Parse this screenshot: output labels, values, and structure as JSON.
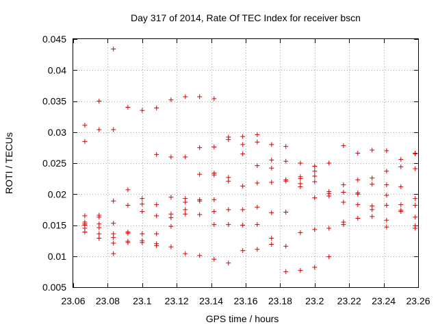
{
  "chart_data": {
    "type": "scatter",
    "title": "Day 317 of 2014, Rate Of TEC Index for receiver bscn",
    "xlabel": "GPS time / hours",
    "ylabel": "ROTI / TECUs",
    "xlim": [
      23.06,
      23.26
    ],
    "ylim": [
      0.005,
      0.045
    ],
    "xticks": [
      23.06,
      23.08,
      23.1,
      23.12,
      23.14,
      23.16,
      23.18,
      23.2,
      23.22,
      23.24,
      23.26
    ],
    "xtick_labels": [
      "23.06",
      "23.08",
      "23.1",
      "23.12",
      "23.14",
      "23.16",
      "23.18",
      "23.2",
      "23.22",
      "23.24",
      "23.26"
    ],
    "yticks": [
      0.005,
      0.01,
      0.015,
      0.02,
      0.025,
      0.03,
      0.035,
      0.04,
      0.045
    ],
    "ytick_labels": [
      "0.005",
      "0.01",
      "0.015",
      "0.02",
      "0.025",
      "0.03",
      "0.035",
      "0.04",
      "0.045"
    ],
    "grid": true,
    "marker": "+",
    "color": "#d40000",
    "series": [
      {
        "name": "ROTI",
        "points": [
          [
            23.0667,
            0.0311
          ],
          [
            23.0667,
            0.0285
          ],
          [
            23.0667,
            0.0165
          ],
          [
            23.0667,
            0.0155
          ],
          [
            23.0667,
            0.0152
          ],
          [
            23.0667,
            0.015
          ],
          [
            23.0667,
            0.0145
          ],
          [
            23.0667,
            0.0139
          ],
          [
            23.075,
            0.035
          ],
          [
            23.075,
            0.0304
          ],
          [
            23.075,
            0.0166
          ],
          [
            23.075,
            0.0163
          ],
          [
            23.075,
            0.0152
          ],
          [
            23.075,
            0.0146
          ],
          [
            23.075,
            0.0136
          ],
          [
            23.075,
            0.0129
          ],
          [
            23.0833,
            0.0434
          ],
          [
            23.0833,
            0.0304
          ],
          [
            23.0833,
            0.0189
          ],
          [
            23.0833,
            0.0153
          ],
          [
            23.0833,
            0.0136
          ],
          [
            23.0833,
            0.013
          ],
          [
            23.0833,
            0.0121
          ],
          [
            23.0833,
            0.0104
          ],
          [
            23.0917,
            0.034
          ],
          [
            23.0917,
            0.0207
          ],
          [
            23.0917,
            0.0182
          ],
          [
            23.0917,
            0.0139
          ],
          [
            23.0917,
            0.0137
          ],
          [
            23.0917,
            0.0124
          ],
          [
            23.0917,
            0.0122
          ],
          [
            23.1,
            0.0335
          ],
          [
            23.1,
            0.0193
          ],
          [
            23.1,
            0.0184
          ],
          [
            23.1,
            0.0172
          ],
          [
            23.1,
            0.0136
          ],
          [
            23.1,
            0.0125
          ],
          [
            23.1,
            0.0122
          ],
          [
            23.1083,
            0.0339
          ],
          [
            23.1083,
            0.0264
          ],
          [
            23.1083,
            0.0183
          ],
          [
            23.1083,
            0.0165
          ],
          [
            23.1083,
            0.0136
          ],
          [
            23.1083,
            0.012
          ],
          [
            23.1083,
            0.0117
          ],
          [
            23.1167,
            0.0352
          ],
          [
            23.1167,
            0.026
          ],
          [
            23.1167,
            0.0195
          ],
          [
            23.1167,
            0.0168
          ],
          [
            23.1167,
            0.0162
          ],
          [
            23.1167,
            0.0148
          ],
          [
            23.1167,
            0.0115
          ],
          [
            23.125,
            0.0357
          ],
          [
            23.125,
            0.026
          ],
          [
            23.125,
            0.0193
          ],
          [
            23.125,
            0.0187
          ],
          [
            23.125,
            0.0175
          ],
          [
            23.125,
            0.0168
          ],
          [
            23.125,
            0.0104
          ],
          [
            23.1333,
            0.0357
          ],
          [
            23.1333,
            0.0275
          ],
          [
            23.1333,
            0.0232
          ],
          [
            23.1333,
            0.0191
          ],
          [
            23.1333,
            0.0189
          ],
          [
            23.1333,
            0.0167
          ],
          [
            23.1333,
            0.0101
          ],
          [
            23.1417,
            0.0354
          ],
          [
            23.1417,
            0.0276
          ],
          [
            23.1417,
            0.0234
          ],
          [
            23.1417,
            0.0231
          ],
          [
            23.1417,
            0.0191
          ],
          [
            23.1417,
            0.0172
          ],
          [
            23.1417,
            0.0151
          ],
          [
            23.1417,
            0.0095
          ],
          [
            23.15,
            0.0292
          ],
          [
            23.15,
            0.0288
          ],
          [
            23.15,
            0.0227
          ],
          [
            23.15,
            0.0221
          ],
          [
            23.15,
            0.0175
          ],
          [
            23.15,
            0.0151
          ],
          [
            23.15,
            0.0089
          ],
          [
            23.1583,
            0.0293
          ],
          [
            23.1583,
            0.028
          ],
          [
            23.1583,
            0.0265
          ],
          [
            23.1583,
            0.0213
          ],
          [
            23.1583,
            0.0175
          ],
          [
            23.1583,
            0.015
          ],
          [
            23.1583,
            0.0109
          ],
          [
            23.1667,
            0.0296
          ],
          [
            23.1667,
            0.0284
          ],
          [
            23.1667,
            0.0246
          ],
          [
            23.1667,
            0.0218
          ],
          [
            23.1667,
            0.0179
          ],
          [
            23.1667,
            0.0151
          ],
          [
            23.1667,
            0.0111
          ],
          [
            23.175,
            0.028
          ],
          [
            23.175,
            0.0255
          ],
          [
            23.175,
            0.0242
          ],
          [
            23.175,
            0.0219
          ],
          [
            23.175,
            0.017
          ],
          [
            23.175,
            0.0129
          ],
          [
            23.175,
            0.0119
          ],
          [
            23.1833,
            0.0277
          ],
          [
            23.1833,
            0.0253
          ],
          [
            23.1833,
            0.0223
          ],
          [
            23.1833,
            0.0221
          ],
          [
            23.1833,
            0.0171
          ],
          [
            23.1833,
            0.0116
          ],
          [
            23.1833,
            0.0075
          ],
          [
            23.1917,
            0.025
          ],
          [
            23.1917,
            0.0228
          ],
          [
            23.1917,
            0.0225
          ],
          [
            23.1917,
            0.0217
          ],
          [
            23.1917,
            0.0212
          ],
          [
            23.1917,
            0.0138
          ],
          [
            23.1917,
            0.0077
          ],
          [
            23.2,
            0.0245
          ],
          [
            23.2,
            0.0237
          ],
          [
            23.2,
            0.0229
          ],
          [
            23.2,
            0.022
          ],
          [
            23.2,
            0.0194
          ],
          [
            23.2,
            0.0143
          ],
          [
            23.2,
            0.0082
          ],
          [
            23.2083,
            0.025
          ],
          [
            23.2083,
            0.0204
          ],
          [
            23.2083,
            0.0201
          ],
          [
            23.2083,
            0.0197
          ],
          [
            23.2083,
            0.0145
          ],
          [
            23.2083,
            0.0099
          ],
          [
            23.2167,
            0.0278
          ],
          [
            23.2167,
            0.0215
          ],
          [
            23.2167,
            0.0203
          ],
          [
            23.2167,
            0.0187
          ],
          [
            23.2167,
            0.0155
          ],
          [
            23.2167,
            0.0151
          ],
          [
            23.225,
            0.0266
          ],
          [
            23.225,
            0.0223
          ],
          [
            23.225,
            0.0202
          ],
          [
            23.225,
            0.02
          ],
          [
            23.225,
            0.0183
          ],
          [
            23.225,
            0.0161
          ],
          [
            23.2333,
            0.0271
          ],
          [
            23.2333,
            0.0226
          ],
          [
            23.2333,
            0.0216
          ],
          [
            23.2333,
            0.0181
          ],
          [
            23.2333,
            0.0175
          ],
          [
            23.2333,
            0.0164
          ],
          [
            23.2417,
            0.027
          ],
          [
            23.2417,
            0.0237
          ],
          [
            23.2417,
            0.0215
          ],
          [
            23.2417,
            0.0198
          ],
          [
            23.2417,
            0.0182
          ],
          [
            23.2417,
            0.0158
          ],
          [
            23.2417,
            0.0147
          ],
          [
            23.25,
            0.0256
          ],
          [
            23.25,
            0.0244
          ],
          [
            23.25,
            0.0212
          ],
          [
            23.25,
            0.0183
          ],
          [
            23.25,
            0.0174
          ],
          [
            23.25,
            0.0172
          ],
          [
            23.2583,
            0.0266
          ],
          [
            23.2583,
            0.0265
          ],
          [
            23.2583,
            0.0241
          ],
          [
            23.2583,
            0.0193
          ],
          [
            23.2583,
            0.0182
          ],
          [
            23.2583,
            0.0163
          ],
          [
            23.2583,
            0.0149
          ],
          [
            23.2583,
            0.0145
          ]
        ]
      }
    ]
  }
}
